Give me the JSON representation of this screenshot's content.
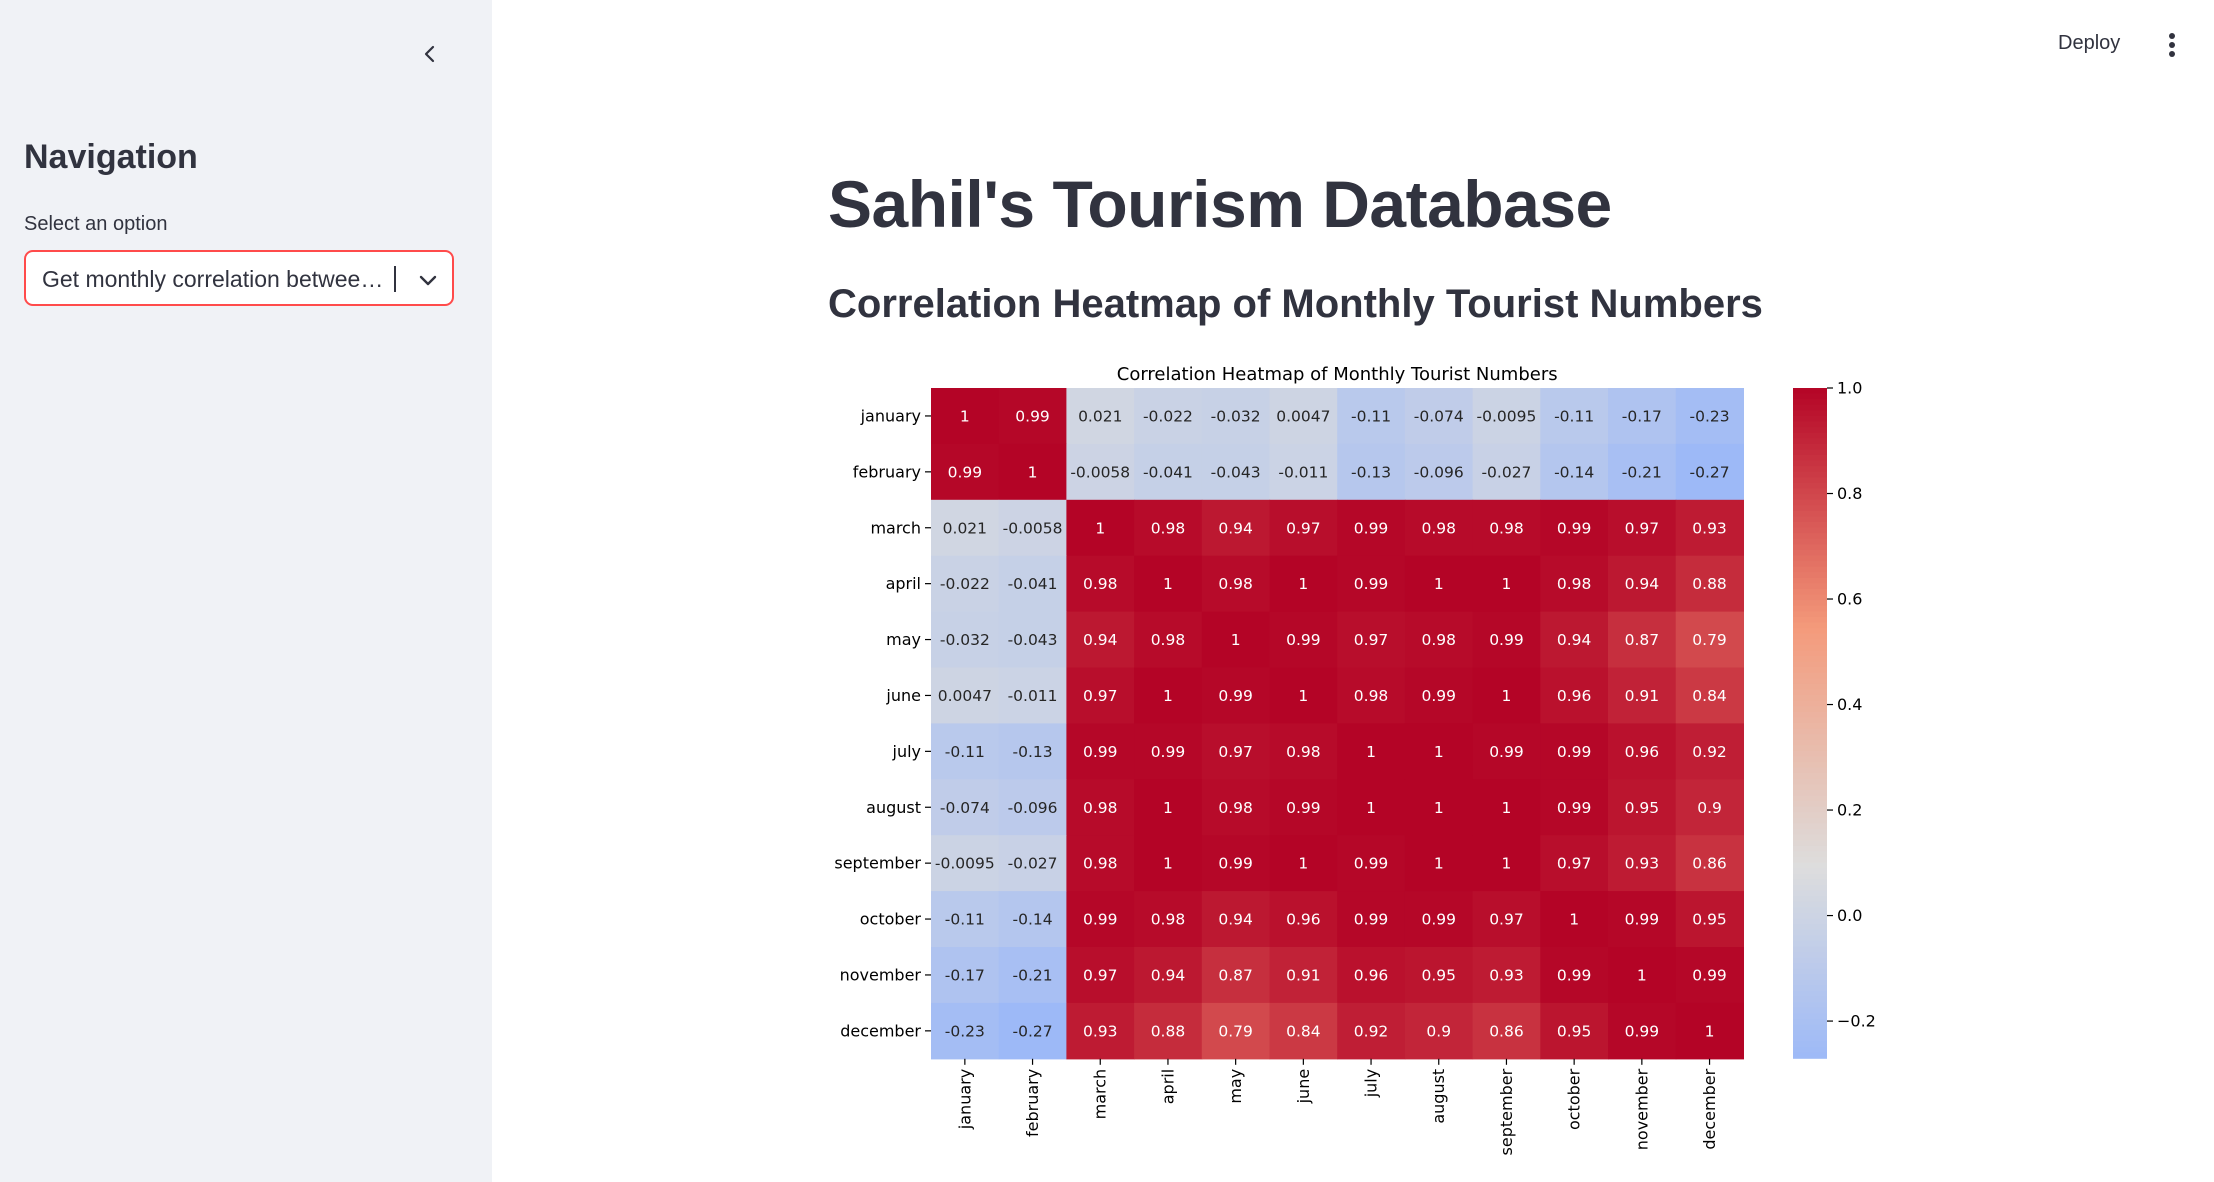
{
  "sidebar": {
    "nav_title": "Navigation",
    "select_label": "Select an option",
    "select_value": "Get monthly correlation between tourist numbers"
  },
  "topbar": {
    "deploy_label": "Deploy"
  },
  "main": {
    "title": "Sahil's Tourism Database",
    "subtitle": "Correlation Heatmap of Monthly Tourist Numbers"
  },
  "colors": {
    "accent": "#ff4b4b",
    "sidebar_bg": "#f0f2f6",
    "text": "#31333f"
  },
  "chart_data": {
    "type": "heatmap",
    "title": "Correlation Heatmap of Monthly Tourist Numbers",
    "colormap": "coolwarm",
    "vmin": -0.27,
    "vmax": 1.0,
    "rows": [
      "january",
      "february",
      "march",
      "april",
      "may",
      "june",
      "july",
      "august",
      "september",
      "october",
      "november",
      "december"
    ],
    "columns": [
      "january",
      "february",
      "march",
      "april",
      "may",
      "june",
      "july",
      "august",
      "september",
      "october",
      "november",
      "december"
    ],
    "values": [
      [
        1,
        0.99,
        0.021,
        -0.022,
        -0.032,
        0.0047,
        -0.11,
        -0.074,
        -0.0095,
        -0.11,
        -0.17,
        -0.23
      ],
      [
        0.99,
        1,
        -0.0058,
        -0.041,
        -0.043,
        -0.011,
        -0.13,
        -0.096,
        -0.027,
        -0.14,
        -0.21,
        -0.27
      ],
      [
        0.021,
        -0.0058,
        1,
        0.98,
        0.94,
        0.97,
        0.99,
        0.98,
        0.98,
        0.99,
        0.97,
        0.93
      ],
      [
        -0.022,
        -0.041,
        0.98,
        1,
        0.98,
        1,
        0.99,
        1,
        1,
        0.98,
        0.94,
        0.88
      ],
      [
        -0.032,
        -0.043,
        0.94,
        0.98,
        1,
        0.99,
        0.97,
        0.98,
        0.99,
        0.94,
        0.87,
        0.79
      ],
      [
        0.0047,
        -0.011,
        0.97,
        1,
        0.99,
        1,
        0.98,
        0.99,
        1,
        0.96,
        0.91,
        0.84
      ],
      [
        -0.11,
        -0.13,
        0.99,
        0.99,
        0.97,
        0.98,
        1,
        1,
        0.99,
        0.99,
        0.96,
        0.92
      ],
      [
        -0.074,
        -0.096,
        0.98,
        1,
        0.98,
        0.99,
        1,
        1,
        1,
        0.99,
        0.95,
        0.9
      ],
      [
        -0.0095,
        -0.027,
        0.98,
        1,
        0.99,
        1,
        0.99,
        1,
        1,
        0.97,
        0.93,
        0.86
      ],
      [
        -0.11,
        -0.14,
        0.99,
        0.98,
        0.94,
        0.96,
        0.99,
        0.99,
        0.97,
        1,
        0.99,
        0.95
      ],
      [
        -0.17,
        -0.21,
        0.97,
        0.94,
        0.87,
        0.91,
        0.96,
        0.95,
        0.93,
        0.99,
        1,
        0.99
      ],
      [
        -0.23,
        -0.27,
        0.93,
        0.88,
        0.79,
        0.84,
        0.92,
        0.9,
        0.86,
        0.95,
        0.99,
        1
      ]
    ],
    "colorbar_ticks": [
      {
        "value": 1.0,
        "label": "1.0"
      },
      {
        "value": 0.8,
        "label": "0.8"
      },
      {
        "value": 0.6,
        "label": "0.6"
      },
      {
        "value": 0.4,
        "label": "0.4"
      },
      {
        "value": 0.2,
        "label": "0.2"
      },
      {
        "value": 0.0,
        "label": "0.0"
      },
      {
        "value": -0.2,
        "label": "−0.2"
      }
    ]
  }
}
